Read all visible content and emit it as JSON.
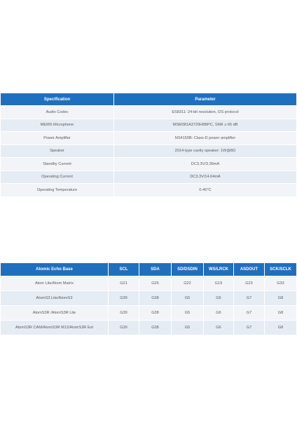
{
  "spec_table": {
    "headers": [
      "Specification",
      "Parameter"
    ],
    "rows": [
      [
        "Audio Codec",
        "ES8311: 24-bit resolution, I2S protocol"
      ],
      [
        "MEMS Microphone",
        "MSM381A3729H9BPC, SNR ≥ 65 dB"
      ],
      [
        "Power Amplifier",
        "NS4150B: Class-D power amplifier"
      ],
      [
        "Speaker",
        "2014-type cavity speaker: 1W@8Ω"
      ],
      [
        "Standby Current",
        "DC3.3V/3.36mA"
      ],
      [
        "Operating Current",
        "DC3.3V/14.64mA"
      ],
      [
        "Operating Temperature",
        "0-40°C"
      ]
    ]
  },
  "pin_table": {
    "headers": [
      "Atomic Echo Base",
      "SCL",
      "SDA",
      "SD/DSDIN",
      "WS/LRCK",
      "ASDOUT",
      "SCK/SCLK"
    ],
    "rows": [
      [
        "Atom Lite/Atom Matrix",
        "G21",
        "G25",
        "G22",
        "G19",
        "G23",
        "G33"
      ],
      [
        "AtomS3 Lite/AtomS3",
        "G39",
        "G38",
        "G5",
        "G6",
        "G7",
        "G8"
      ],
      [
        "AtomS3R /AtomS3R Lite",
        "G39",
        "G38",
        "G5",
        "G6",
        "G7",
        "G8"
      ],
      [
        "AtomS3R CAM/AtomS3R M12/AtomS3R Ext",
        "G39",
        "G38",
        "G5",
        "G6",
        "G7",
        "G8"
      ]
    ]
  }
}
